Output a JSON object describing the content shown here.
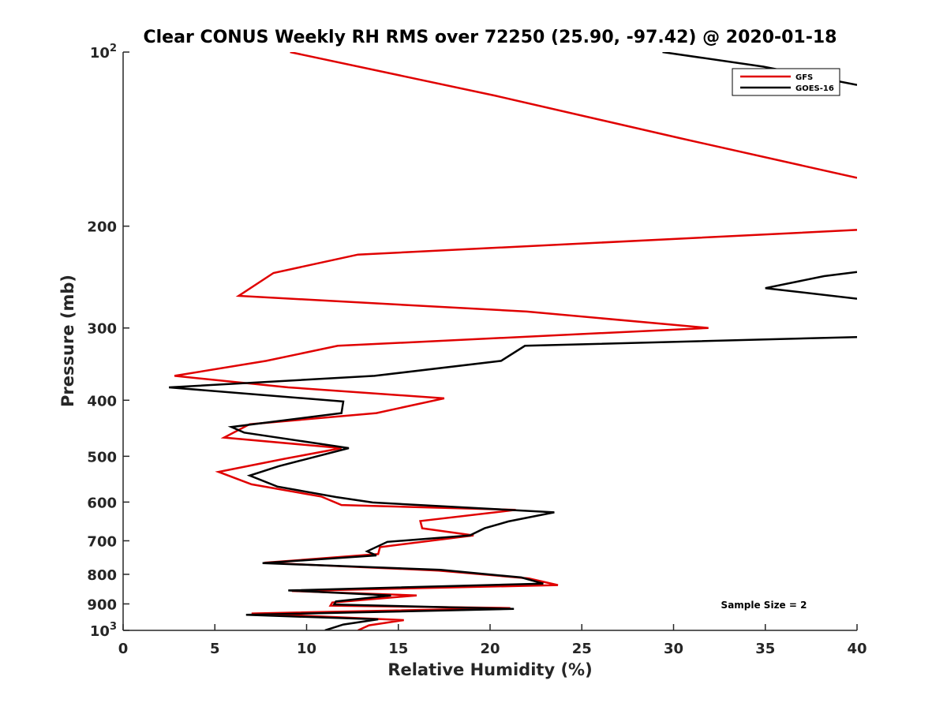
{
  "chart_data": {
    "type": "line",
    "title": "Clear CONUS Weekly RH RMS over 72250 (25.90, -97.42) @ 2020-01-18",
    "xlabel": "Relative Humidity (%)",
    "ylabel": "Pressure (mb)",
    "xlim": [
      0,
      40
    ],
    "ylim": [
      100,
      1000
    ],
    "y_scale": "log",
    "y_reversed": true,
    "x_ticks": [
      "0",
      "5",
      "10",
      "15",
      "20",
      "25",
      "30",
      "35",
      "40"
    ],
    "y_ticks": [
      {
        "value": 100,
        "base": "10",
        "exp": "2"
      },
      {
        "value": 200,
        "label": "200"
      },
      {
        "value": 300,
        "label": "300"
      },
      {
        "value": 400,
        "label": "400"
      },
      {
        "value": 500,
        "label": "500"
      },
      {
        "value": 600,
        "label": "600"
      },
      {
        "value": 700,
        "label": "700"
      },
      {
        "value": 800,
        "label": "800"
      },
      {
        "value": 900,
        "label": "900"
      },
      {
        "value": 1000,
        "base": "10",
        "exp": "3"
      }
    ],
    "legend_position": "top-right",
    "annotation": "Sample Size = 2",
    "series": [
      {
        "name": "GFS",
        "color": "#e00000",
        "points": [
          [
            9.1,
            100
          ],
          [
            20.3,
            119
          ],
          [
            30.4,
            141
          ],
          [
            40.0,
            165
          ],
          [
            null,
            null
          ],
          [
            40.0,
            203
          ],
          [
            12.8,
            224
          ],
          [
            8.2,
            241
          ],
          [
            6.3,
            264
          ],
          [
            22.0,
            281
          ],
          [
            31.9,
            300
          ],
          [
            11.7,
            322
          ],
          [
            7.8,
            342
          ],
          [
            2.8,
            363
          ],
          [
            9.0,
            380
          ],
          [
            17.5,
            397
          ],
          [
            13.8,
            421
          ],
          [
            6.9,
            440
          ],
          [
            5.5,
            464
          ],
          [
            11.9,
            484
          ],
          [
            8.8,
            505
          ],
          [
            5.2,
            532
          ],
          [
            7.0,
            559
          ],
          [
            10.8,
            587
          ],
          [
            11.9,
            607
          ],
          [
            21.4,
            619
          ],
          [
            16.2,
            647
          ],
          [
            16.3,
            666
          ],
          [
            19.1,
            685
          ],
          [
            14.0,
            718
          ],
          [
            13.9,
            738
          ],
          [
            7.7,
            764
          ],
          [
            17.2,
            788
          ],
          [
            22.1,
            813
          ],
          [
            23.7,
            835
          ],
          [
            9.2,
            855
          ],
          [
            16.0,
            870
          ],
          [
            11.4,
            895
          ],
          [
            11.3,
            906
          ],
          [
            21.1,
            915
          ],
          [
            7.0,
            935
          ],
          [
            15.3,
            960
          ],
          [
            13.4,
            980
          ],
          [
            12.8,
            1000
          ]
        ]
      },
      {
        "name": "GOES-16",
        "color": "#000000",
        "points": [
          [
            29.4,
            100
          ],
          [
            34.9,
            106
          ],
          [
            40.0,
            114
          ],
          [
            null,
            null
          ],
          [
            40.0,
            240
          ],
          [
            38.2,
            244
          ],
          [
            35.0,
            256
          ],
          [
            40.0,
            267
          ],
          [
            null,
            null
          ],
          [
            40.0,
            311
          ],
          [
            21.9,
            322
          ],
          [
            20.6,
            342
          ],
          [
            13.7,
            363
          ],
          [
            2.5,
            380
          ],
          [
            12.0,
            402
          ],
          [
            11.9,
            421
          ],
          [
            5.9,
            445
          ],
          [
            6.6,
            455
          ],
          [
            12.3,
            484
          ],
          [
            8.5,
            520
          ],
          [
            6.9,
            540
          ],
          [
            8.4,
            564
          ],
          [
            11.6,
            588
          ],
          [
            13.6,
            601
          ],
          [
            23.5,
            625
          ],
          [
            21.0,
            648
          ],
          [
            19.7,
            666
          ],
          [
            18.9,
            685
          ],
          [
            14.4,
            703
          ],
          [
            13.3,
            730
          ],
          [
            13.8,
            742
          ],
          [
            7.6,
            765
          ],
          [
            17.3,
            786
          ],
          [
            21.7,
            810
          ],
          [
            22.9,
            830
          ],
          [
            9.0,
            853
          ],
          [
            14.6,
            870
          ],
          [
            11.6,
            891
          ],
          [
            11.5,
            902
          ],
          [
            21.3,
            918
          ],
          [
            6.7,
            940
          ],
          [
            13.9,
            957
          ],
          [
            12.0,
            977
          ],
          [
            11.0,
            1000
          ]
        ]
      }
    ]
  }
}
